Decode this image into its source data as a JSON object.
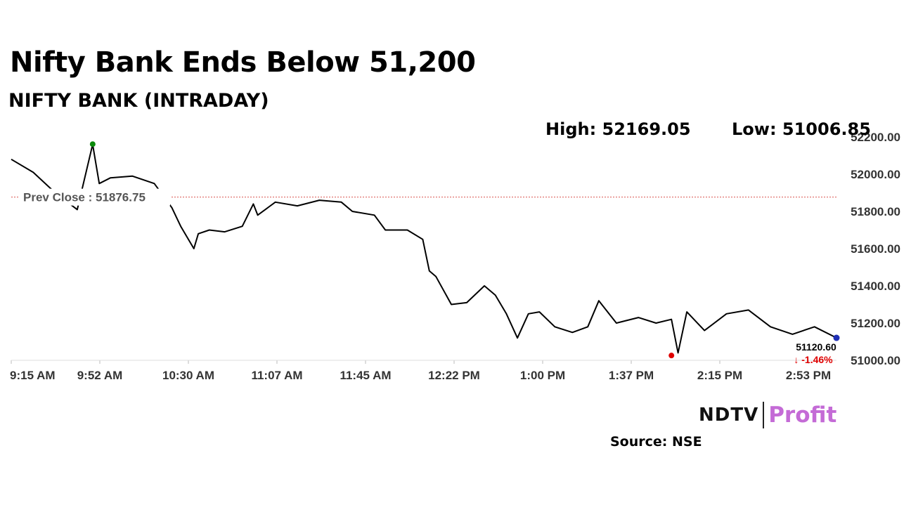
{
  "headline": "Nifty Bank Ends Below 51,200",
  "subtitle": "NIFTY BANK (INTRADAY)",
  "high_label": "High: 52169.05",
  "low_label": "Low: 51006.85",
  "source": "Source: NSE",
  "logo": {
    "left": "NDTV",
    "right": "Profit"
  },
  "colors": {
    "line": "#000000",
    "prev_close": "#d9534f",
    "high_marker": "#0b8a0b",
    "low_marker": "#e00000",
    "last_marker": "#1f2fb5",
    "change_negative": "#e00000",
    "profit_brand": "#c46bd6"
  },
  "chart_data": {
    "type": "line",
    "series": [
      {
        "x": [
          "9:15",
          "9:25",
          "9:35",
          "9:45",
          "9:52",
          "9:55",
          "10:00",
          "10:10",
          "10:20",
          "10:28",
          "10:32",
          "10:38",
          "10:40",
          "10:45",
          "10:52",
          "11:00",
          "11:05",
          "11:07",
          "11:15",
          "11:25",
          "11:35",
          "11:45",
          "11:50",
          "12:00",
          "12:05",
          "12:15",
          "12:22",
          "12:25",
          "12:28",
          "12:35",
          "12:42",
          "12:50",
          "12:55",
          "13:00",
          "13:05",
          "13:10",
          "13:15",
          "13:22",
          "13:30",
          "13:37",
          "13:42",
          "13:50",
          "14:00",
          "14:08",
          "14:15",
          "14:18",
          "14:22",
          "14:30",
          "14:40",
          "14:50",
          "15:00",
          "15:10",
          "15:20",
          "15:30"
        ],
        "y": [
          52080,
          52010,
          51900,
          51810,
          52160,
          51950,
          51980,
          51990,
          51950,
          51820,
          51720,
          51600,
          51680,
          51700,
          51690,
          51720,
          51840,
          51780,
          51850,
          51830,
          51860,
          51850,
          51800,
          51780,
          51700,
          51700,
          51650,
          51480,
          51450,
          51300,
          51310,
          51400,
          51350,
          51250,
          51120,
          51250,
          51260,
          51180,
          51150,
          51180,
          51320,
          51200,
          51230,
          51200,
          51220,
          51040,
          51260,
          51160,
          51250,
          51270,
          51180,
          51140,
          51180,
          51120.6
        ]
      }
    ],
    "prev_close": 51876.75,
    "prev_close_label": "Prev Close : 51876.75",
    "high": {
      "time": "9:52",
      "value": 52169.05
    },
    "low": {
      "time": "14:15",
      "value": 51006.85
    },
    "last": {
      "value": "51120.60",
      "change": "-1.46%",
      "arrow": "↓"
    },
    "x_ticks": [
      "9:15 AM",
      "9:52 AM",
      "10:30 AM",
      "11:07 AM",
      "11:45 AM",
      "12:22 PM",
      "1:00 PM",
      "1:37 PM",
      "2:15 PM",
      "2:53 PM"
    ],
    "y_ticks": [
      "51000.00",
      "51200.00",
      "51400.00",
      "51600.00",
      "51800.00",
      "52000.00",
      "52200.00"
    ],
    "ylim": [
      51000,
      52200
    ],
    "xlim": [
      "9:15",
      "15:30"
    ],
    "grid": false
  }
}
